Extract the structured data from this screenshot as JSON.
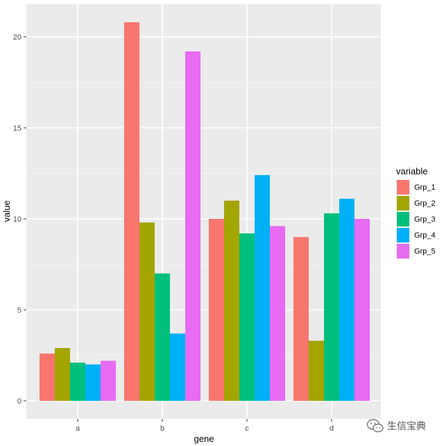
{
  "chart_data": {
    "type": "bar",
    "xlabel": "gene",
    "ylabel": "value",
    "categories": [
      "a",
      "b",
      "c",
      "d"
    ],
    "ylim": [
      -0.8,
      21.8
    ],
    "yticks": [
      0,
      5,
      10,
      15,
      20
    ],
    "grid": true,
    "legend_title": "variable",
    "legend_position": "right",
    "series": [
      {
        "name": "Grp_1",
        "color": "#F8766D",
        "values": [
          2.6,
          20.8,
          10.0,
          9.0
        ]
      },
      {
        "name": "Grp_2",
        "color": "#A3A500",
        "values": [
          2.9,
          9.8,
          11.0,
          3.3
        ]
      },
      {
        "name": "Grp_3",
        "color": "#00BF7D",
        "values": [
          2.1,
          7.0,
          9.2,
          10.3
        ]
      },
      {
        "name": "Grp_4",
        "color": "#00B0F6",
        "values": [
          2.0,
          3.7,
          12.4,
          11.1
        ]
      },
      {
        "name": "Grp_5",
        "color": "#E76BF3",
        "values": [
          2.2,
          19.2,
          9.6,
          10.0
        ]
      }
    ]
  },
  "watermark": {
    "text": "生信宝典",
    "icon": "wechat-icon"
  }
}
